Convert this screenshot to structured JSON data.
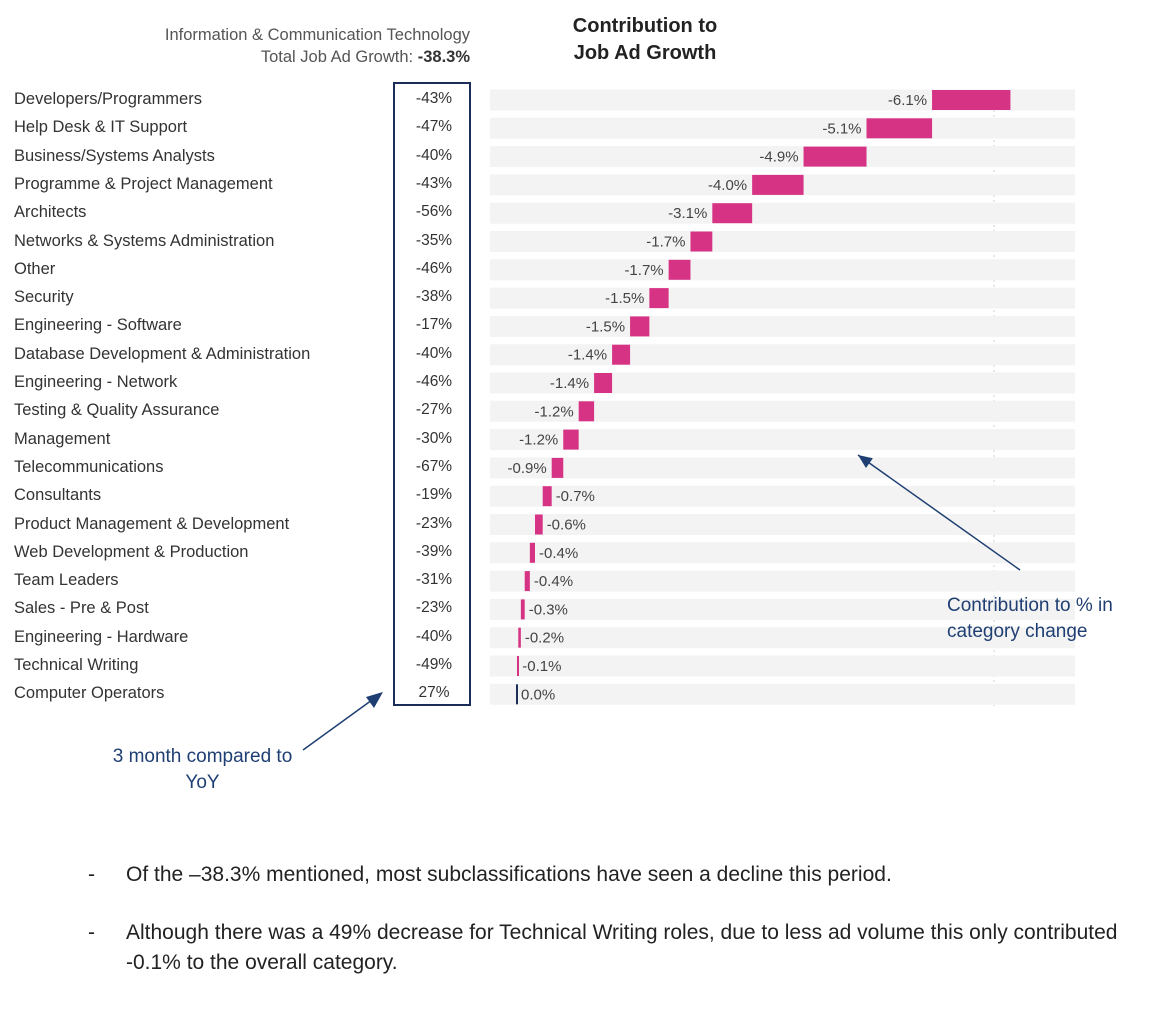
{
  "header": {
    "category": "Information & Communication Technology",
    "growth_label": "Total Job Ad Growth:",
    "growth_value": "-38.3%"
  },
  "chart_data": {
    "type": "bar",
    "title": "Contribution to Job Ad Growth",
    "title_lines": [
      "Contribution to",
      "Job Ad Growth"
    ],
    "orientation": "horizontal-waterfall",
    "accent_color": "#d63384",
    "zero_marker_color": "#1b2e57",
    "categories": [
      {
        "name": "Developers/Programmers",
        "yoy": "-43%",
        "contribution": -6.1,
        "label": "-6.1%"
      },
      {
        "name": "Help Desk & IT Support",
        "yoy": "-47%",
        "contribution": -5.1,
        "label": "-5.1%"
      },
      {
        "name": "Business/Systems Analysts",
        "yoy": "-40%",
        "contribution": -4.9,
        "label": "-4.9%"
      },
      {
        "name": "Programme & Project Management",
        "yoy": "-43%",
        "contribution": -4.0,
        "label": "-4.0%"
      },
      {
        "name": "Architects",
        "yoy": "-56%",
        "contribution": -3.1,
        "label": "-3.1%"
      },
      {
        "name": "Networks & Systems Administration",
        "yoy": "-35%",
        "contribution": -1.7,
        "label": "-1.7%"
      },
      {
        "name": "Other",
        "yoy": "-46%",
        "contribution": -1.7,
        "label": "-1.7%"
      },
      {
        "name": "Security",
        "yoy": "-38%",
        "contribution": -1.5,
        "label": "-1.5%"
      },
      {
        "name": "Engineering - Software",
        "yoy": "-17%",
        "contribution": -1.5,
        "label": "-1.5%"
      },
      {
        "name": "Database Development & Administration",
        "yoy": "-40%",
        "contribution": -1.4,
        "label": "-1.4%"
      },
      {
        "name": "Engineering - Network",
        "yoy": "-46%",
        "contribution": -1.4,
        "label": "-1.4%"
      },
      {
        "name": "Testing & Quality Assurance",
        "yoy": "-27%",
        "contribution": -1.2,
        "label": "-1.2%"
      },
      {
        "name": "Management",
        "yoy": "-30%",
        "contribution": -1.2,
        "label": "-1.2%"
      },
      {
        "name": "Telecommunications",
        "yoy": "-67%",
        "contribution": -0.9,
        "label": "-0.9%"
      },
      {
        "name": "Consultants",
        "yoy": "-19%",
        "contribution": -0.7,
        "label": "-0.7%"
      },
      {
        "name": "Product Management & Development",
        "yoy": "-23%",
        "contribution": -0.6,
        "label": "-0.6%"
      },
      {
        "name": "Web Development & Production",
        "yoy": "-39%",
        "contribution": -0.4,
        "label": "-0.4%"
      },
      {
        "name": "Team Leaders",
        "yoy": "-31%",
        "contribution": -0.4,
        "label": "-0.4%"
      },
      {
        "name": "Sales - Pre & Post",
        "yoy": "-23%",
        "contribution": -0.3,
        "label": "-0.3%"
      },
      {
        "name": "Engineering - Hardware",
        "yoy": "-40%",
        "contribution": -0.2,
        "label": "-0.2%"
      },
      {
        "name": "Technical Writing",
        "yoy": "-49%",
        "contribution": -0.1,
        "label": "-0.1%"
      },
      {
        "name": "Computer Operators",
        "yoy": "27%",
        "contribution": 0.0,
        "label": "0.0%"
      }
    ]
  },
  "annotations": {
    "right": "Contribution to % in category change",
    "left": "3 month compared to YoY"
  },
  "notes": [
    "Of the –38.3% mentioned, most subclassifications have seen a decline this period.",
    "Although there was a 49% decrease for Technical Writing roles, due to less ad volume this only contributed -0.1% to the overall category."
  ],
  "note_dash": "-"
}
